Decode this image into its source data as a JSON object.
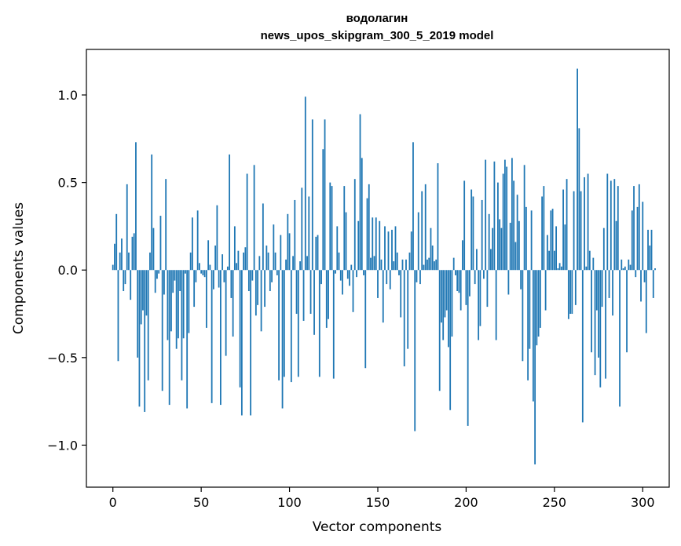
{
  "chart_data": {
    "type": "bar",
    "title_line1": "водолагин",
    "title_line2": "news_upos_skipgram_300_5_2019 model",
    "xlabel": "Vector components",
    "ylabel": "Components values",
    "xlim": [
      -15,
      315
    ],
    "ylim": [
      -1.24,
      1.26
    ],
    "xticks": [
      0,
      50,
      100,
      150,
      200,
      250,
      300
    ],
    "xtick_labels": [
      "0",
      "50",
      "100",
      "150",
      "200",
      "250",
      "300"
    ],
    "yticks": [
      -1.0,
      -0.5,
      0.0,
      0.5,
      1.0
    ],
    "ytick_labels": [
      "−1.0",
      "−0.5",
      "0.0",
      "0.5",
      "1.0"
    ],
    "bar_color": "#1f77b4",
    "values": [
      0.03,
      0.15,
      0.32,
      -0.52,
      0.1,
      0.18,
      -0.12,
      -0.08,
      0.49,
      0.1,
      -0.17,
      0.19,
      0.21,
      0.73,
      -0.5,
      -0.78,
      -0.31,
      -0.23,
      -0.81,
      -0.26,
      -0.63,
      0.1,
      0.66,
      0.24,
      -0.13,
      -0.05,
      -0.02,
      0.31,
      -0.69,
      -0.14,
      0.52,
      -0.4,
      -0.77,
      -0.35,
      -0.13,
      -0.06,
      -0.45,
      -0.39,
      -0.12,
      -0.63,
      -0.39,
      -0.02,
      -0.79,
      -0.36,
      0.1,
      0.3,
      -0.21,
      -0.07,
      0.34,
      0.04,
      -0.02,
      -0.03,
      -0.04,
      -0.33,
      0.17,
      0.03,
      -0.76,
      -0.11,
      0.14,
      0.37,
      -0.1,
      -0.77,
      0.09,
      -0.07,
      -0.49,
      0.02,
      0.66,
      -0.16,
      -0.38,
      0.25,
      0.04,
      0.11,
      -0.67,
      -0.83,
      0.1,
      0.13,
      0.55,
      -0.12,
      -0.83,
      -0.06,
      0.6,
      -0.26,
      -0.2,
      0.08,
      -0.35,
      0.38,
      -0.21,
      0.14,
      0.1,
      -0.12,
      -0.07,
      0.26,
      0.1,
      -0.03,
      -0.63,
      0.2,
      -0.79,
      -0.61,
      0.06,
      0.32,
      0.21,
      -0.64,
      0.08,
      0.4,
      -0.25,
      -0.61,
      0.05,
      0.47,
      -0.29,
      0.99,
      0.08,
      0.42,
      -0.25,
      0.86,
      -0.37,
      0.19,
      0.2,
      -0.61,
      -0.08,
      0.69,
      0.86,
      -0.33,
      -0.28,
      0.5,
      0.48,
      -0.62,
      -0.02,
      0.25,
      0.1,
      -0.06,
      -0.14,
      0.48,
      0.33,
      -0.05,
      -0.09,
      0.03,
      -0.24,
      0.52,
      -0.04,
      0.28,
      0.89,
      0.64,
      -0.03,
      -0.56,
      0.41,
      0.49,
      0.07,
      0.3,
      0.08,
      0.3,
      -0.16,
      0.28,
      0.06,
      -0.3,
      0.25,
      -0.08,
      0.22,
      -0.11,
      0.23,
      0.05,
      0.25,
      0.1,
      -0.03,
      -0.27,
      0.06,
      -0.55,
      0.06,
      -0.45,
      0.1,
      0.22,
      0.73,
      -0.92,
      -0.07,
      0.33,
      -0.08,
      0.45,
      0.03,
      0.49,
      0.06,
      0.07,
      0.24,
      0.14,
      0.05,
      0.06,
      0.61,
      -0.69,
      -0.3,
      -0.4,
      -0.27,
      -0.23,
      -0.44,
      -0.8,
      -0.38,
      0.07,
      -0.03,
      -0.12,
      -0.13,
      -0.23,
      0.17,
      0.51,
      -0.2,
      -0.89,
      -0.15,
      0.46,
      0.42,
      -0.08,
      0.12,
      -0.4,
      -0.32,
      0.4,
      -0.05,
      0.63,
      -0.21,
      0.32,
      0.12,
      0.24,
      0.62,
      -0.4,
      0.5,
      0.29,
      0.24,
      0.55,
      0.63,
      0.59,
      -0.14,
      0.27,
      0.64,
      0.51,
      0.16,
      0.43,
      0.28,
      -0.11,
      -0.52,
      0.6,
      0.36,
      -0.63,
      -0.45,
      0.34,
      -0.75,
      -1.11,
      -0.43,
      -0.38,
      -0.33,
      0.42,
      0.48,
      -0.23,
      0.2,
      0.11,
      0.34,
      0.35,
      0.11,
      0.25,
      0.01,
      0.04,
      0.02,
      0.46,
      0.26,
      0.52,
      -0.28,
      -0.25,
      -0.25,
      0.45,
      -0.2,
      1.15,
      0.81,
      0.45,
      -0.87,
      0.53,
      0.02,
      0.55,
      0.11,
      -0.47,
      0.07,
      -0.6,
      -0.23,
      -0.5,
      -0.67,
      -0.21,
      0.24,
      -0.62,
      0.55,
      -0.16,
      0.51,
      -0.26,
      0.52,
      0.28,
      0.48,
      -0.78,
      0.06,
      0.01,
      0.02,
      -0.47,
      0.06,
      0.03,
      0.34,
      0.48,
      -0.04,
      0.36,
      0.49,
      -0.18,
      0.39,
      -0.07,
      -0.36,
      0.23,
      0.14,
      0.23,
      -0.16,
      0.01
    ]
  }
}
